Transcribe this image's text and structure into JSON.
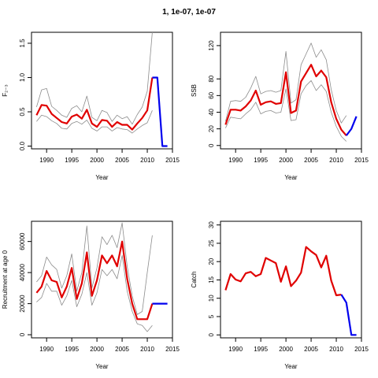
{
  "title": "1, 1e-07, 1e-07",
  "colors": {
    "estimate": "#e00000",
    "projection": "#0000ee",
    "bounds": "#8c8c8c",
    "axes": "#000000"
  },
  "chart_data": [
    {
      "id": "F",
      "type": "line",
      "title": "",
      "xlabel": "Year",
      "ylabel": "F₂₋₃",
      "xlim": [
        1987,
        2015
      ],
      "ylim": [
        -0.04,
        1.66
      ],
      "xticks": [
        1990,
        1995,
        2000,
        2005,
        2010,
        2015
      ],
      "yticks": [
        0.0,
        0.5,
        1.0,
        1.5
      ],
      "ytick_labels": [
        "0.0",
        "0.5",
        "1.0",
        "1.5"
      ],
      "series": [
        {
          "role": "estimate",
          "x": [
            1988,
            1989,
            1990,
            1991,
            1992,
            1993,
            1994,
            1995,
            1996,
            1997,
            1998,
            1999,
            2000,
            2001,
            2002,
            2003,
            2004,
            2005,
            2006,
            2007,
            2008,
            2009,
            2010,
            2011
          ],
          "y": [
            0.45,
            0.6,
            0.59,
            0.47,
            0.41,
            0.35,
            0.33,
            0.43,
            0.46,
            0.4,
            0.53,
            0.33,
            0.28,
            0.38,
            0.37,
            0.28,
            0.35,
            0.31,
            0.31,
            0.24,
            0.33,
            0.41,
            0.52,
            1.0
          ]
        },
        {
          "role": "upper",
          "x": [
            1988,
            1989,
            1990,
            1991,
            1992,
            1993,
            1994,
            1995,
            1996,
            1997,
            1998,
            1999,
            2000,
            2001,
            2002,
            2003,
            2004,
            2005,
            2006,
            2007,
            2008,
            2009,
            2010,
            2011
          ],
          "y": [
            0.57,
            0.82,
            0.84,
            0.58,
            0.52,
            0.45,
            0.42,
            0.55,
            0.59,
            0.5,
            0.73,
            0.42,
            0.37,
            0.52,
            0.49,
            0.36,
            0.45,
            0.4,
            0.43,
            0.32,
            0.46,
            0.57,
            0.8,
            1.66
          ]
        },
        {
          "role": "lower",
          "x": [
            1988,
            1989,
            1990,
            1991,
            1992,
            1993,
            1994,
            1995,
            1996,
            1997,
            1998,
            1999,
            2000,
            2001,
            2002,
            2003,
            2004,
            2005,
            2006,
            2007,
            2008,
            2009,
            2010,
            2011
          ],
          "y": [
            0.36,
            0.45,
            0.43,
            0.37,
            0.33,
            0.26,
            0.25,
            0.33,
            0.36,
            0.32,
            0.38,
            0.26,
            0.22,
            0.28,
            0.28,
            0.22,
            0.27,
            0.25,
            0.24,
            0.19,
            0.25,
            0.3,
            0.34,
            0.52
          ]
        },
        {
          "role": "projection",
          "x": [
            2011,
            2012,
            2013,
            2014
          ],
          "y": [
            1.0,
            1.0,
            0.0,
            0.0
          ]
        }
      ]
    },
    {
      "id": "SSB",
      "type": "line",
      "title": "",
      "xlabel": "Year",
      "ylabel": "SSB",
      "xlim": [
        1987,
        2015
      ],
      "ylim": [
        -4,
        136
      ],
      "xticks": [
        1990,
        1995,
        2000,
        2005,
        2010,
        2015
      ],
      "yticks": [
        0,
        20,
        40,
        60,
        80,
        120
      ],
      "ytick_labels": [
        "0",
        "20",
        "40",
        "60",
        "80",
        "120"
      ],
      "series": [
        {
          "role": "estimate",
          "x": [
            1988,
            1989,
            1990,
            1991,
            1992,
            1993,
            1994,
            1995,
            1996,
            1997,
            1998,
            1999,
            2000,
            2001,
            2002,
            2003,
            2004,
            2005,
            2006,
            2007,
            2008,
            2009,
            2010,
            2011,
            2012
          ],
          "y": [
            25,
            43,
            43,
            42,
            47,
            54,
            66,
            49,
            52,
            53,
            50,
            51,
            88,
            39,
            42,
            77,
            87,
            97,
            83,
            90,
            82,
            52,
            32,
            19,
            12
          ]
        },
        {
          "role": "upper",
          "x": [
            1988,
            1989,
            1990,
            1991,
            1992,
            1993,
            1994,
            1995,
            1996,
            1997,
            1998,
            1999,
            2000,
            2001,
            2002,
            2003,
            2004,
            2005,
            2006,
            2007,
            2008,
            2009,
            2010,
            2011,
            2012
          ],
          "y": [
            29,
            53,
            54,
            53,
            58,
            69,
            83,
            62,
            65,
            66,
            64,
            66,
            113,
            51,
            55,
            97,
            110,
            123,
            106,
            115,
            103,
            67,
            42,
            27,
            36
          ]
        },
        {
          "role": "lower",
          "x": [
            1988,
            1989,
            1990,
            1991,
            1992,
            1993,
            1994,
            1995,
            1996,
            1997,
            1998,
            1999,
            2000,
            2001,
            2002,
            2003,
            2004,
            2005,
            2006,
            2007,
            2008,
            2009,
            2010,
            2011,
            2012
          ],
          "y": [
            21,
            34,
            33,
            32,
            38,
            43,
            52,
            38,
            41,
            42,
            39,
            40,
            68,
            30,
            31,
            62,
            72,
            78,
            66,
            73,
            65,
            40,
            23,
            11,
            5
          ]
        },
        {
          "role": "projection",
          "x": [
            2012,
            2013,
            2014
          ],
          "y": [
            12,
            20,
            35
          ]
        }
      ]
    },
    {
      "id": "Recruitment",
      "type": "line",
      "title": "",
      "xlabel": "Year",
      "ylabel": "Recruitment at age 0",
      "xlim": [
        1987,
        2015
      ],
      "ylim": [
        -2000,
        73000
      ],
      "xticks": [
        1990,
        1995,
        2000,
        2005,
        2010,
        2015
      ],
      "yticks": [
        0,
        20000,
        40000,
        60000
      ],
      "ytick_labels": [
        "0",
        "20000",
        "40000",
        "60000"
      ],
      "series": [
        {
          "role": "estimate",
          "x": [
            1988,
            1989,
            1990,
            1991,
            1992,
            1993,
            1994,
            1995,
            1996,
            1997,
            1998,
            1999,
            2000,
            2001,
            2002,
            2003,
            2004,
            2005,
            2006,
            2007,
            2008,
            2009,
            2010,
            2011
          ],
          "y": [
            27000,
            31000,
            41000,
            35000,
            34000,
            24000,
            31000,
            43000,
            23000,
            33000,
            53000,
            25000,
            35000,
            51000,
            46000,
            51000,
            44000,
            60000,
            36000,
            20000,
            10000,
            10000,
            10000,
            20000
          ]
        },
        {
          "role": "upper",
          "x": [
            1988,
            1989,
            1990,
            1991,
            1992,
            1993,
            1994,
            1995,
            1996,
            1997,
            1998,
            1999,
            2000,
            2001,
            2002,
            2003,
            2004,
            2005,
            2006,
            2007,
            2008,
            2009,
            2010,
            2011
          ],
          "y": [
            34000,
            38000,
            50000,
            45000,
            42000,
            30000,
            38000,
            52000,
            28000,
            40000,
            70000,
            30000,
            43000,
            63000,
            58000,
            64000,
            56000,
            72000,
            44000,
            25000,
            13000,
            15000,
            40000,
            64000
          ]
        },
        {
          "role": "lower",
          "x": [
            1988,
            1989,
            1990,
            1991,
            1992,
            1993,
            1994,
            1995,
            1996,
            1997,
            1998,
            1999,
            2000,
            2001,
            2002,
            2003,
            2004,
            2005,
            2006,
            2007,
            2008,
            2009,
            2010,
            2011
          ],
          "y": [
            21000,
            24000,
            33000,
            28000,
            28000,
            19000,
            25000,
            35000,
            18000,
            26000,
            40000,
            19000,
            27000,
            42000,
            38000,
            42000,
            36000,
            51000,
            28000,
            15000,
            7000,
            6000,
            2000,
            6000
          ]
        },
        {
          "role": "projection",
          "x": [
            2011,
            2012,
            2013,
            2014
          ],
          "y": [
            20000,
            20000,
            20000,
            20000
          ]
        }
      ]
    },
    {
      "id": "Catch",
      "type": "line",
      "title": "",
      "xlabel": "Year",
      "ylabel": "Catch",
      "xlim": [
        1987,
        2015
      ],
      "ylim": [
        -0.8,
        31
      ],
      "xticks": [
        1990,
        1995,
        2000,
        2005,
        2010,
        2015
      ],
      "yticks": [
        0,
        5,
        10,
        15,
        20,
        25,
        30
      ],
      "ytick_labels": [
        "0",
        "5",
        "10",
        "15",
        "20",
        "25",
        "30"
      ],
      "series": [
        {
          "role": "estimate",
          "x": [
            1988,
            1989,
            1990,
            1991,
            1992,
            1993,
            1994,
            1995,
            1996,
            1997,
            1998,
            1999,
            2000,
            2001,
            2002,
            2003,
            2004,
            2005,
            2006,
            2007,
            2008,
            2009,
            2010,
            2011
          ],
          "y": [
            12.2,
            16.6,
            15.1,
            14.6,
            16.8,
            17.2,
            16.0,
            16.6,
            21.0,
            20.3,
            19.6,
            14.5,
            18.7,
            13.3,
            14.8,
            17.0,
            24.0,
            22.8,
            21.8,
            18.4,
            21.6,
            14.8,
            10.8,
            11.0
          ]
        },
        {
          "role": "projection",
          "x": [
            2011,
            2012,
            2013,
            2014
          ],
          "y": [
            11.0,
            8.8,
            0.0,
            0.0
          ]
        }
      ]
    }
  ]
}
